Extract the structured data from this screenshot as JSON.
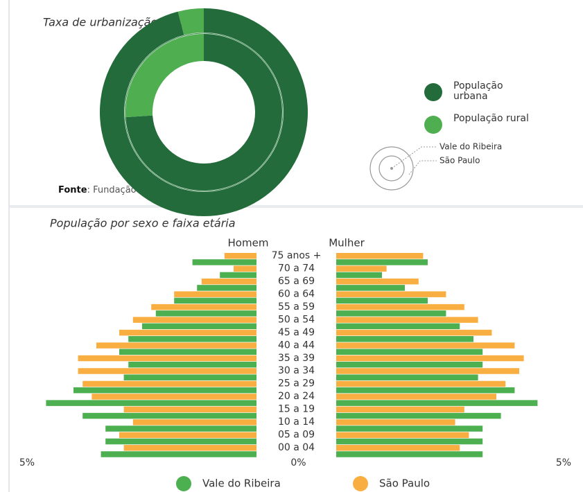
{
  "chart_data": [
    {
      "type": "donut",
      "title": "Taxa de urbanização (2020)",
      "categories": [
        "População urbana",
        "População rural"
      ],
      "colors": [
        "#236b3a",
        "#4fae4f"
      ],
      "rings": [
        {
          "name": "Vale do Ribeira",
          "values": [
            74,
            26
          ]
        },
        {
          "name": "São Paulo",
          "values": [
            96,
            4
          ]
        }
      ],
      "source": {
        "label": "Fonte",
        "text": ": Fundação Seade."
      }
    },
    {
      "type": "pyramid",
      "title": "População por sexo e faixa etária",
      "left_label": "Homem",
      "right_label": "Mulher",
      "categories": [
        "75 anos +",
        "70 a 74",
        "65 a 69",
        "60 a 64",
        "55 a 59",
        "50 a 54",
        "45 a 49",
        "40 a 44",
        "35 a 39",
        "30 a 34",
        "25 a 29",
        "20 a 24",
        "15 a 19",
        "10 a 14",
        "05 a 09",
        "00 a 04"
      ],
      "series": [
        {
          "name": "São Paulo",
          "color": "#f9ae42",
          "left": [
            0.7,
            0.5,
            1.2,
            1.8,
            2.3,
            2.7,
            3.0,
            3.5,
            3.9,
            3.9,
            3.8,
            3.6,
            2.9,
            2.7,
            3.0,
            2.9
          ],
          "right": [
            1.9,
            1.1,
            1.8,
            2.4,
            2.8,
            3.1,
            3.4,
            3.9,
            4.1,
            4.0,
            3.7,
            3.5,
            2.8,
            2.6,
            2.9,
            2.7
          ]
        },
        {
          "name": "Vale do Ribeira",
          "color": "#4caf50",
          "left": [
            1.4,
            0.8,
            1.3,
            1.8,
            2.2,
            2.5,
            2.8,
            3.0,
            2.8,
            2.9,
            4.0,
            4.6,
            3.8,
            3.3,
            3.3,
            3.4
          ],
          "right": [
            2.0,
            1.0,
            1.5,
            2.0,
            2.4,
            2.7,
            3.0,
            3.2,
            3.2,
            3.1,
            3.9,
            4.4,
            3.6,
            3.2,
            3.2,
            3.2
          ]
        }
      ],
      "xlim": [
        0,
        5
      ],
      "xticks": [
        {
          "value": 0,
          "label": "0%"
        },
        {
          "value": 5,
          "label": "5%"
        }
      ],
      "legend_order": [
        1,
        0
      ]
    }
  ]
}
